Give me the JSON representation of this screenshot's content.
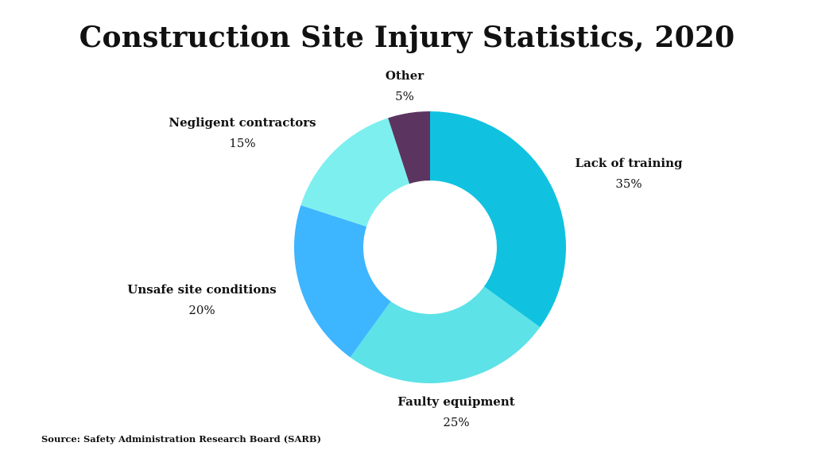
{
  "chart_data": {
    "type": "pie",
    "style": "donut",
    "title": "Construction Site Injury Statistics, 2020",
    "source": "Source: Safety Administration Research Board (SARB)",
    "slices": [
      {
        "label": "Lack of training",
        "value": 35,
        "value_label": "35%",
        "color": "#10c2e0"
      },
      {
        "label": "Faulty equipment",
        "value": 25,
        "value_label": "25%",
        "color": "#5de2e7"
      },
      {
        "label": "Unsafe site conditions",
        "value": 20,
        "value_label": "20%",
        "color": "#3eb5ff"
      },
      {
        "label": "Negligent contractors",
        "value": 15,
        "value_label": "15%",
        "color": "#7defef"
      },
      {
        "label": "Other",
        "value": 5,
        "value_label": "5%",
        "color": "#5b3560"
      }
    ]
  }
}
